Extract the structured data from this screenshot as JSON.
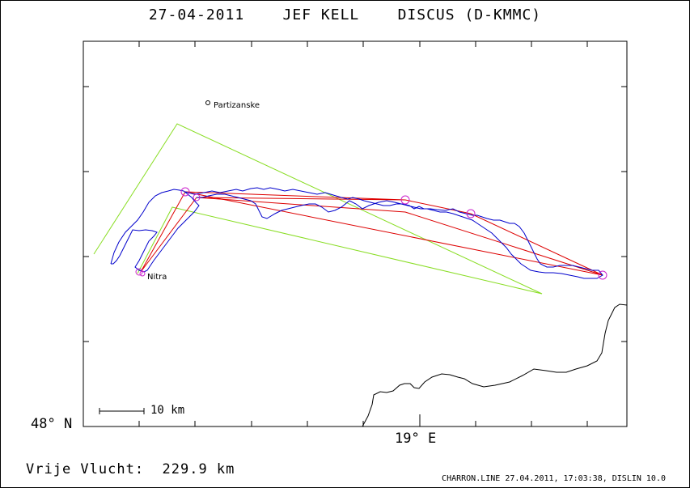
{
  "header": {
    "title": "27-04-2011    JEF KELL    DISCUS (D-KMMC)"
  },
  "axes": {
    "lat_label": "48° N",
    "lon_label": "19° E"
  },
  "scale_bar": {
    "label": "10 km"
  },
  "towns": [
    {
      "name": "Partizanske"
    },
    {
      "name": "Nitra"
    }
  ],
  "footer": {
    "distance_text": "Vrije Vlucht:  229.9 km",
    "credit": "CHARRON.LINE 27.04.2011, 17:03:38, DISLIN 10.0"
  },
  "colors": {
    "track": "#0000cc",
    "task": "#dd0000",
    "fai_triangle": "#88dd22",
    "turnpoint": "#cc22cc",
    "border": "#000000"
  }
}
